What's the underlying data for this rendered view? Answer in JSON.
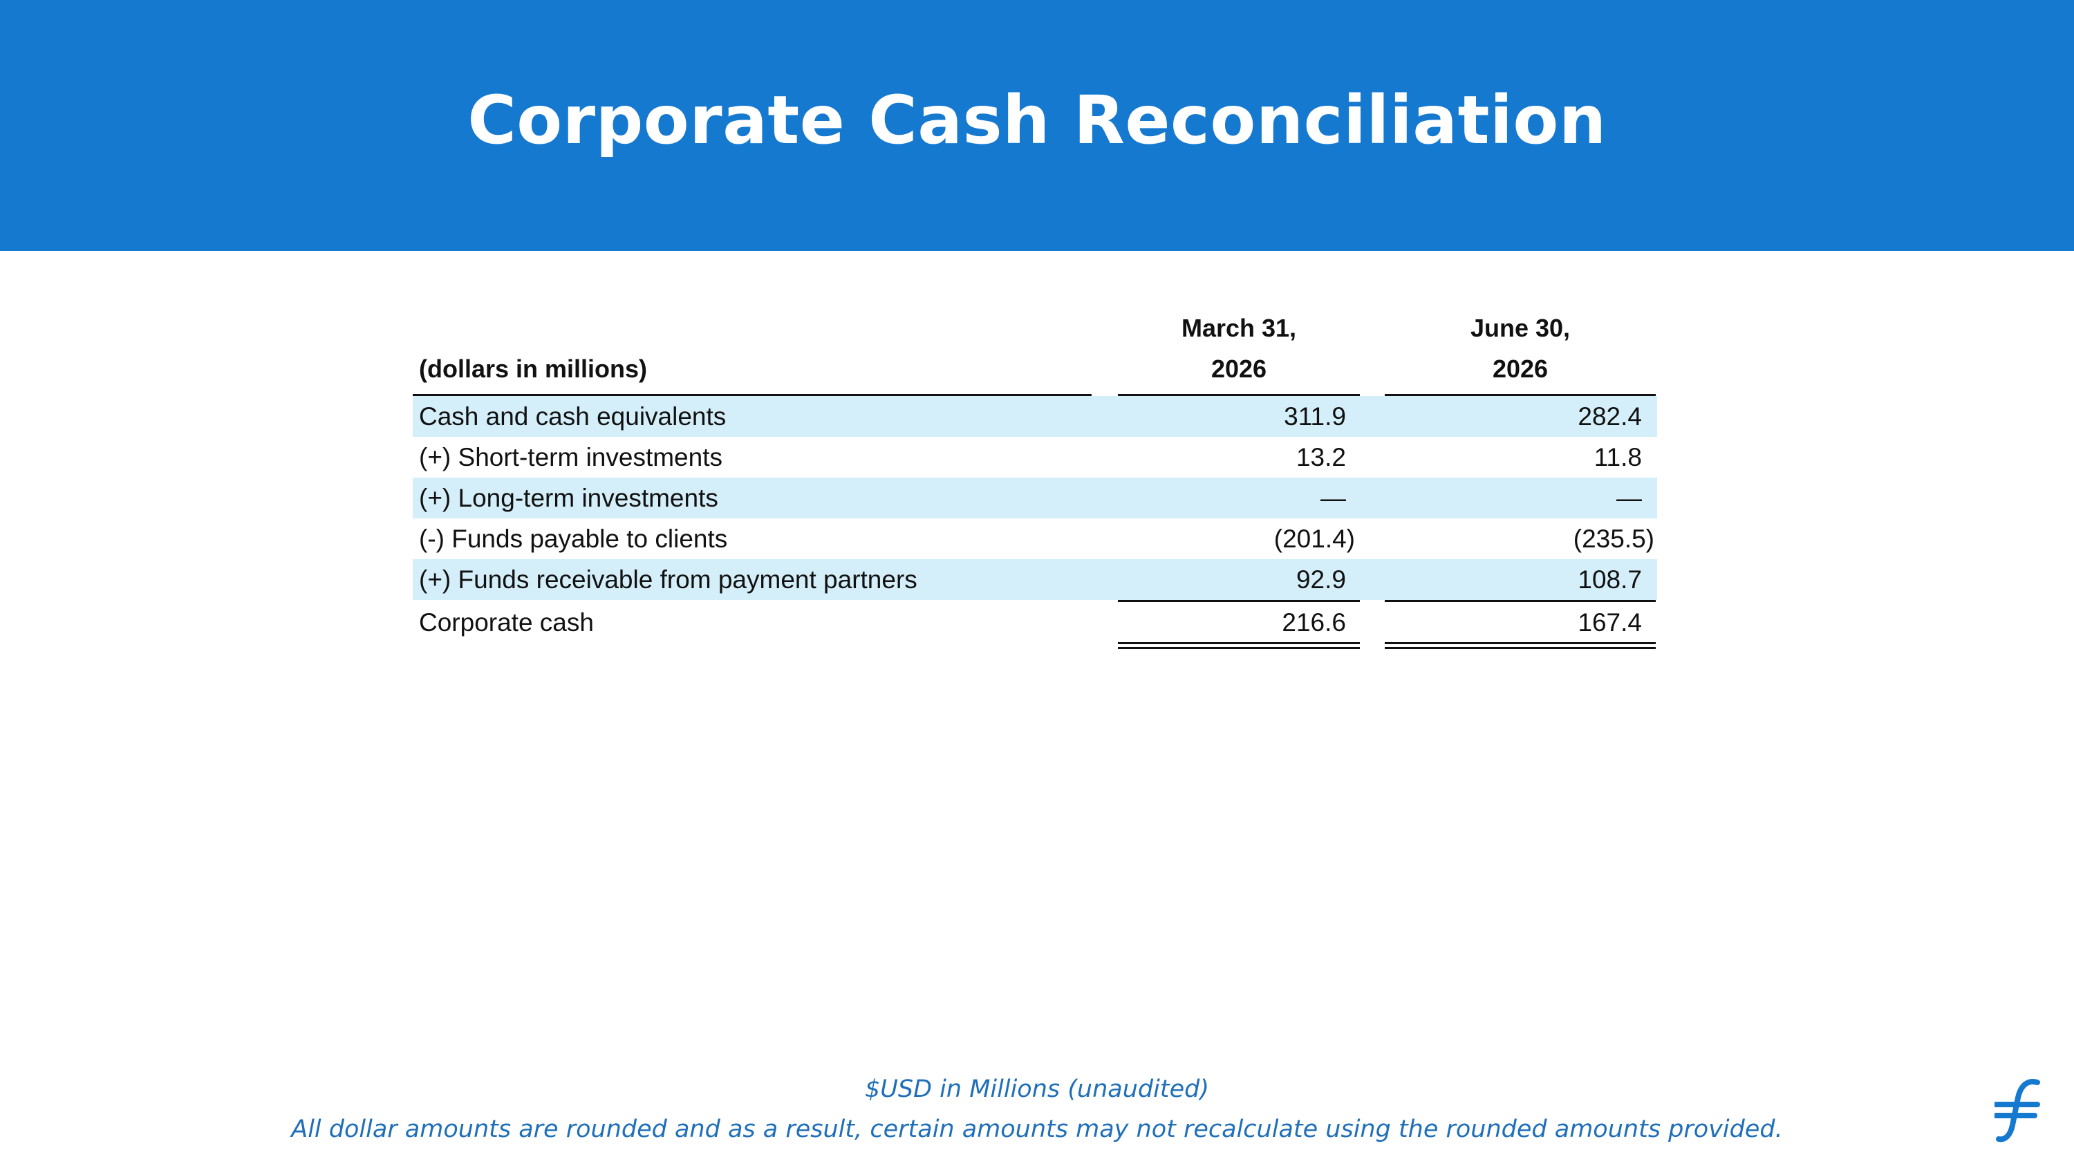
{
  "header": {
    "title": "Corporate Cash Reconciliation"
  },
  "table": {
    "unit_label": "(dollars in millions)",
    "columns": [
      {
        "line1": "March 31,",
        "line2": "2026"
      },
      {
        "line1": "June 30,",
        "line2": "2026"
      }
    ],
    "rows": [
      {
        "label": "Cash and cash equivalents",
        "values": [
          "311.9",
          "282.4"
        ]
      },
      {
        "label": "(+) Short-term investments",
        "values": [
          "13.2",
          "11.8"
        ]
      },
      {
        "label": "(+) Long-term investments",
        "values": [
          "—",
          "—"
        ]
      },
      {
        "label": "(-) Funds payable to clients",
        "values": [
          "(201.4)",
          "(235.5)"
        ]
      },
      {
        "label": "(+) Funds receivable from payment partners",
        "values": [
          "92.9",
          "108.7"
        ]
      }
    ],
    "total": {
      "label": "Corporate cash",
      "values": [
        "216.6",
        "167.4"
      ]
    }
  },
  "footer": {
    "line1": "$USD in Millions (unaudited)",
    "line2": "All dollar amounts are rounded and as a result, certain amounts may not recalculate using the rounded amounts provided."
  },
  "colors": {
    "brand_blue": "#1679d0",
    "row_shade": "#d4eff9",
    "footer_text": "#1f6fb9"
  },
  "icons": {
    "logo": "flywire-logo-icon"
  }
}
